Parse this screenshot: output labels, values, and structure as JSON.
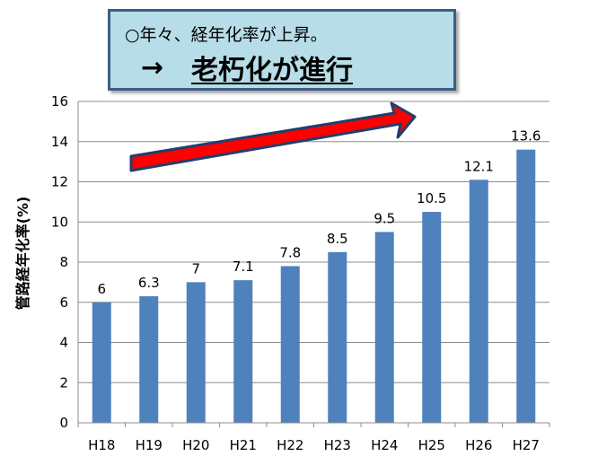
{
  "callout": {
    "line1": "○年々、経年化率が上昇。",
    "arrow": "→",
    "line2": "老朽化が進行"
  },
  "chart_data": {
    "type": "bar",
    "categories": [
      "H18",
      "H19",
      "H20",
      "H21",
      "H22",
      "H23",
      "H24",
      "H25",
      "H26",
      "H27"
    ],
    "values": [
      6,
      6.3,
      7,
      7.1,
      7.8,
      8.5,
      9.5,
      10.5,
      12.1,
      13.6
    ],
    "data_labels": [
      "6",
      "6.3",
      "7",
      "7.1",
      "7.8",
      "8.5",
      "9.5",
      "10.5",
      "12.1",
      "13.6"
    ],
    "yticks": [
      "0",
      "2",
      "4",
      "6",
      "8",
      "10",
      "12",
      "14",
      "16"
    ],
    "ylabel": "管路経年化率(%)",
    "ylim": [
      0,
      16
    ],
    "grid": true,
    "bar_color": "#4f81bd",
    "trend_arrow_color": "#ff0000"
  }
}
